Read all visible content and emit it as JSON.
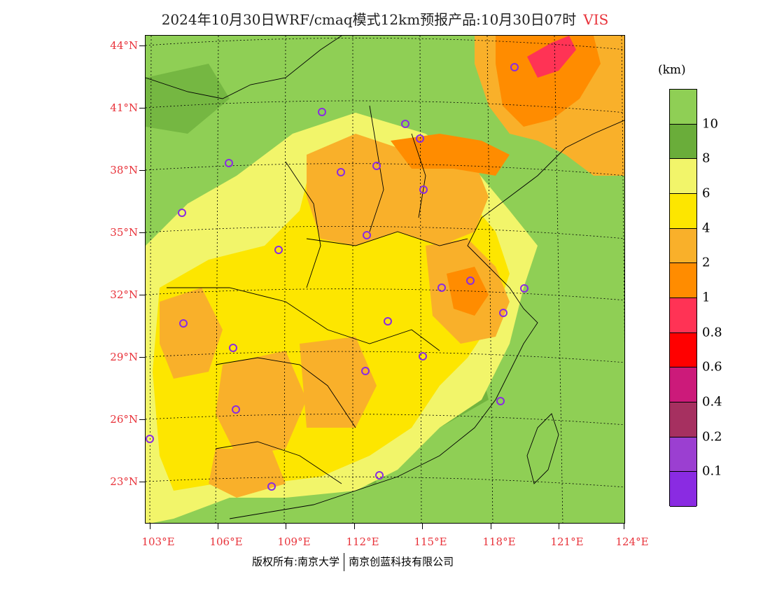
{
  "title": {
    "text": "2024年10月30日WRF/cmaq模式12km预报产品:10月30日07时",
    "variable": "VIS"
  },
  "axes": {
    "lat_labels": [
      "44°N",
      "41°N",
      "38°N",
      "35°N",
      "32°N",
      "29°N",
      "26°N",
      "23°N"
    ],
    "lon_labels": [
      "103°E",
      "106°E",
      "109°E",
      "112°E",
      "115°E",
      "118°E",
      "121°E",
      "124°E"
    ]
  },
  "legend": {
    "unit": "(km)",
    "levels": [
      {
        "label": "10",
        "color": "#8fcf55"
      },
      {
        "label": "8",
        "color": "#6aad3a"
      },
      {
        "label": "6",
        "color": "#f2f56a"
      },
      {
        "label": "4",
        "color": "#fde600"
      },
      {
        "label": "2",
        "color": "#f9b02a"
      },
      {
        "label": "1",
        "color": "#ff8c00"
      },
      {
        "label": "0.8",
        "color": "#ff3355"
      },
      {
        "label": "0.6",
        "color": "#ff0000"
      },
      {
        "label": "0.4",
        "color": "#cc1a7a"
      },
      {
        "label": "0.2",
        "color": "#a63060"
      },
      {
        "label": "0.1",
        "color": "#9b3fd1"
      },
      {
        "label": "",
        "color": "#8a2be2"
      }
    ]
  },
  "stations_marker_color": "#8a2be2",
  "footer": {
    "left": "版权所有:南京大学",
    "right": "南京创蓝科技有限公司"
  }
}
